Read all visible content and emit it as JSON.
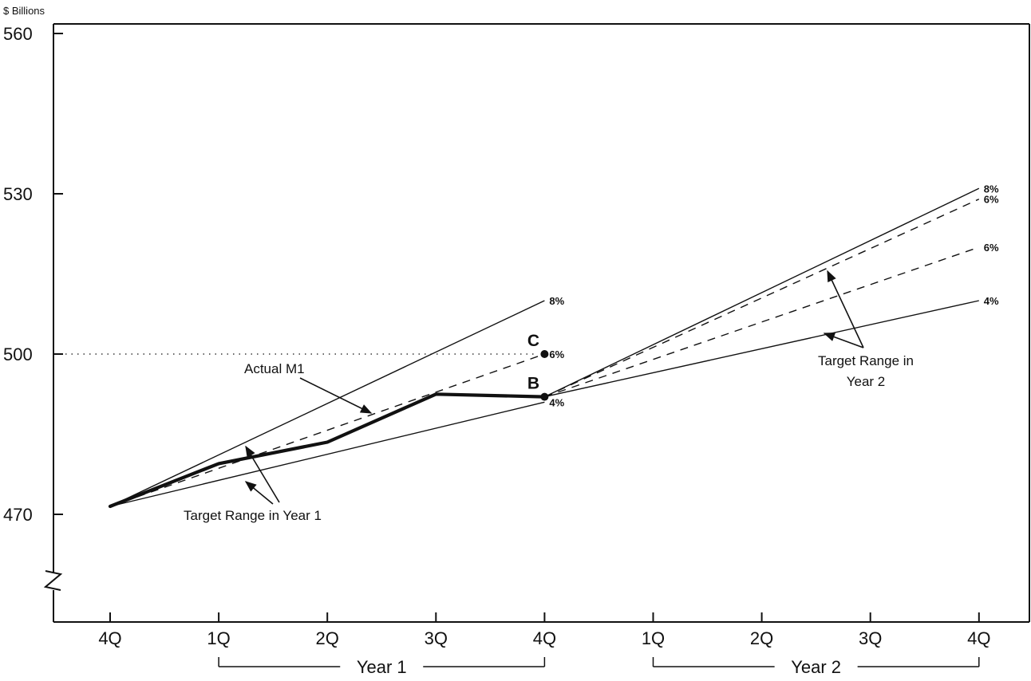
{
  "chart_data": {
    "type": "line",
    "y_unit_label": "$ Billions",
    "x_ticks": [
      "4Q",
      "1Q",
      "2Q",
      "3Q",
      "4Q",
      "1Q",
      "2Q",
      "3Q",
      "4Q"
    ],
    "y_ticks": [
      470,
      500,
      530,
      560
    ],
    "ylim": [
      470,
      560
    ],
    "y_axis_break": true,
    "year_groups": [
      {
        "label": "Year 1",
        "from": 1,
        "to": 4
      },
      {
        "label": "Year 2",
        "from": 5,
        "to": 8
      }
    ],
    "series": [
      {
        "style": "thin",
        "x": [
          0,
          4
        ],
        "y": [
          471.5,
          510
        ]
      },
      {
        "style": "thin",
        "x": [
          0,
          4
        ],
        "y": [
          471.5,
          491
        ]
      },
      {
        "style": "dashed",
        "x": [
          0,
          4
        ],
        "y": [
          471.5,
          500
        ]
      },
      {
        "style": "thin",
        "x": [
          4,
          8
        ],
        "y": [
          492,
          531
        ]
      },
      {
        "style": "thin",
        "x": [
          4,
          8
        ],
        "y": [
          492,
          510
        ]
      },
      {
        "style": "dashed",
        "x": [
          4,
          8
        ],
        "y": [
          492,
          529
        ]
      },
      {
        "style": "dashed",
        "x": [
          4,
          8
        ],
        "y": [
          492,
          520
        ]
      },
      {
        "style": "bold",
        "x": [
          0,
          1,
          2,
          3,
          4
        ],
        "y": [
          471.5,
          479.5,
          483.5,
          492.5,
          492
        ]
      }
    ],
    "end_labels": [
      {
        "text": "8%",
        "x": 4,
        "y": 510
      },
      {
        "text": "6%",
        "x": 4,
        "y": 500
      },
      {
        "text": "4%",
        "x": 4,
        "y": 491
      },
      {
        "text": "8%",
        "x": 8,
        "y": 531
      },
      {
        "text": "6%",
        "x": 8,
        "y": 529
      },
      {
        "text": "6%",
        "x": 8,
        "y": 520
      },
      {
        "text": "4%",
        "x": 8,
        "y": 510
      }
    ],
    "points": [
      {
        "label": "B",
        "x": 4,
        "y": 492
      },
      {
        "label": "C",
        "x": 4,
        "y": 500
      }
    ],
    "reference_line": {
      "y": 500,
      "style": "dotted"
    },
    "annotations": {
      "actual_m1": "Actual M1",
      "target_year1": "Target Range in Year 1",
      "target_year2_line1": "Target Range in",
      "target_year2_line2": "Year 2"
    }
  }
}
